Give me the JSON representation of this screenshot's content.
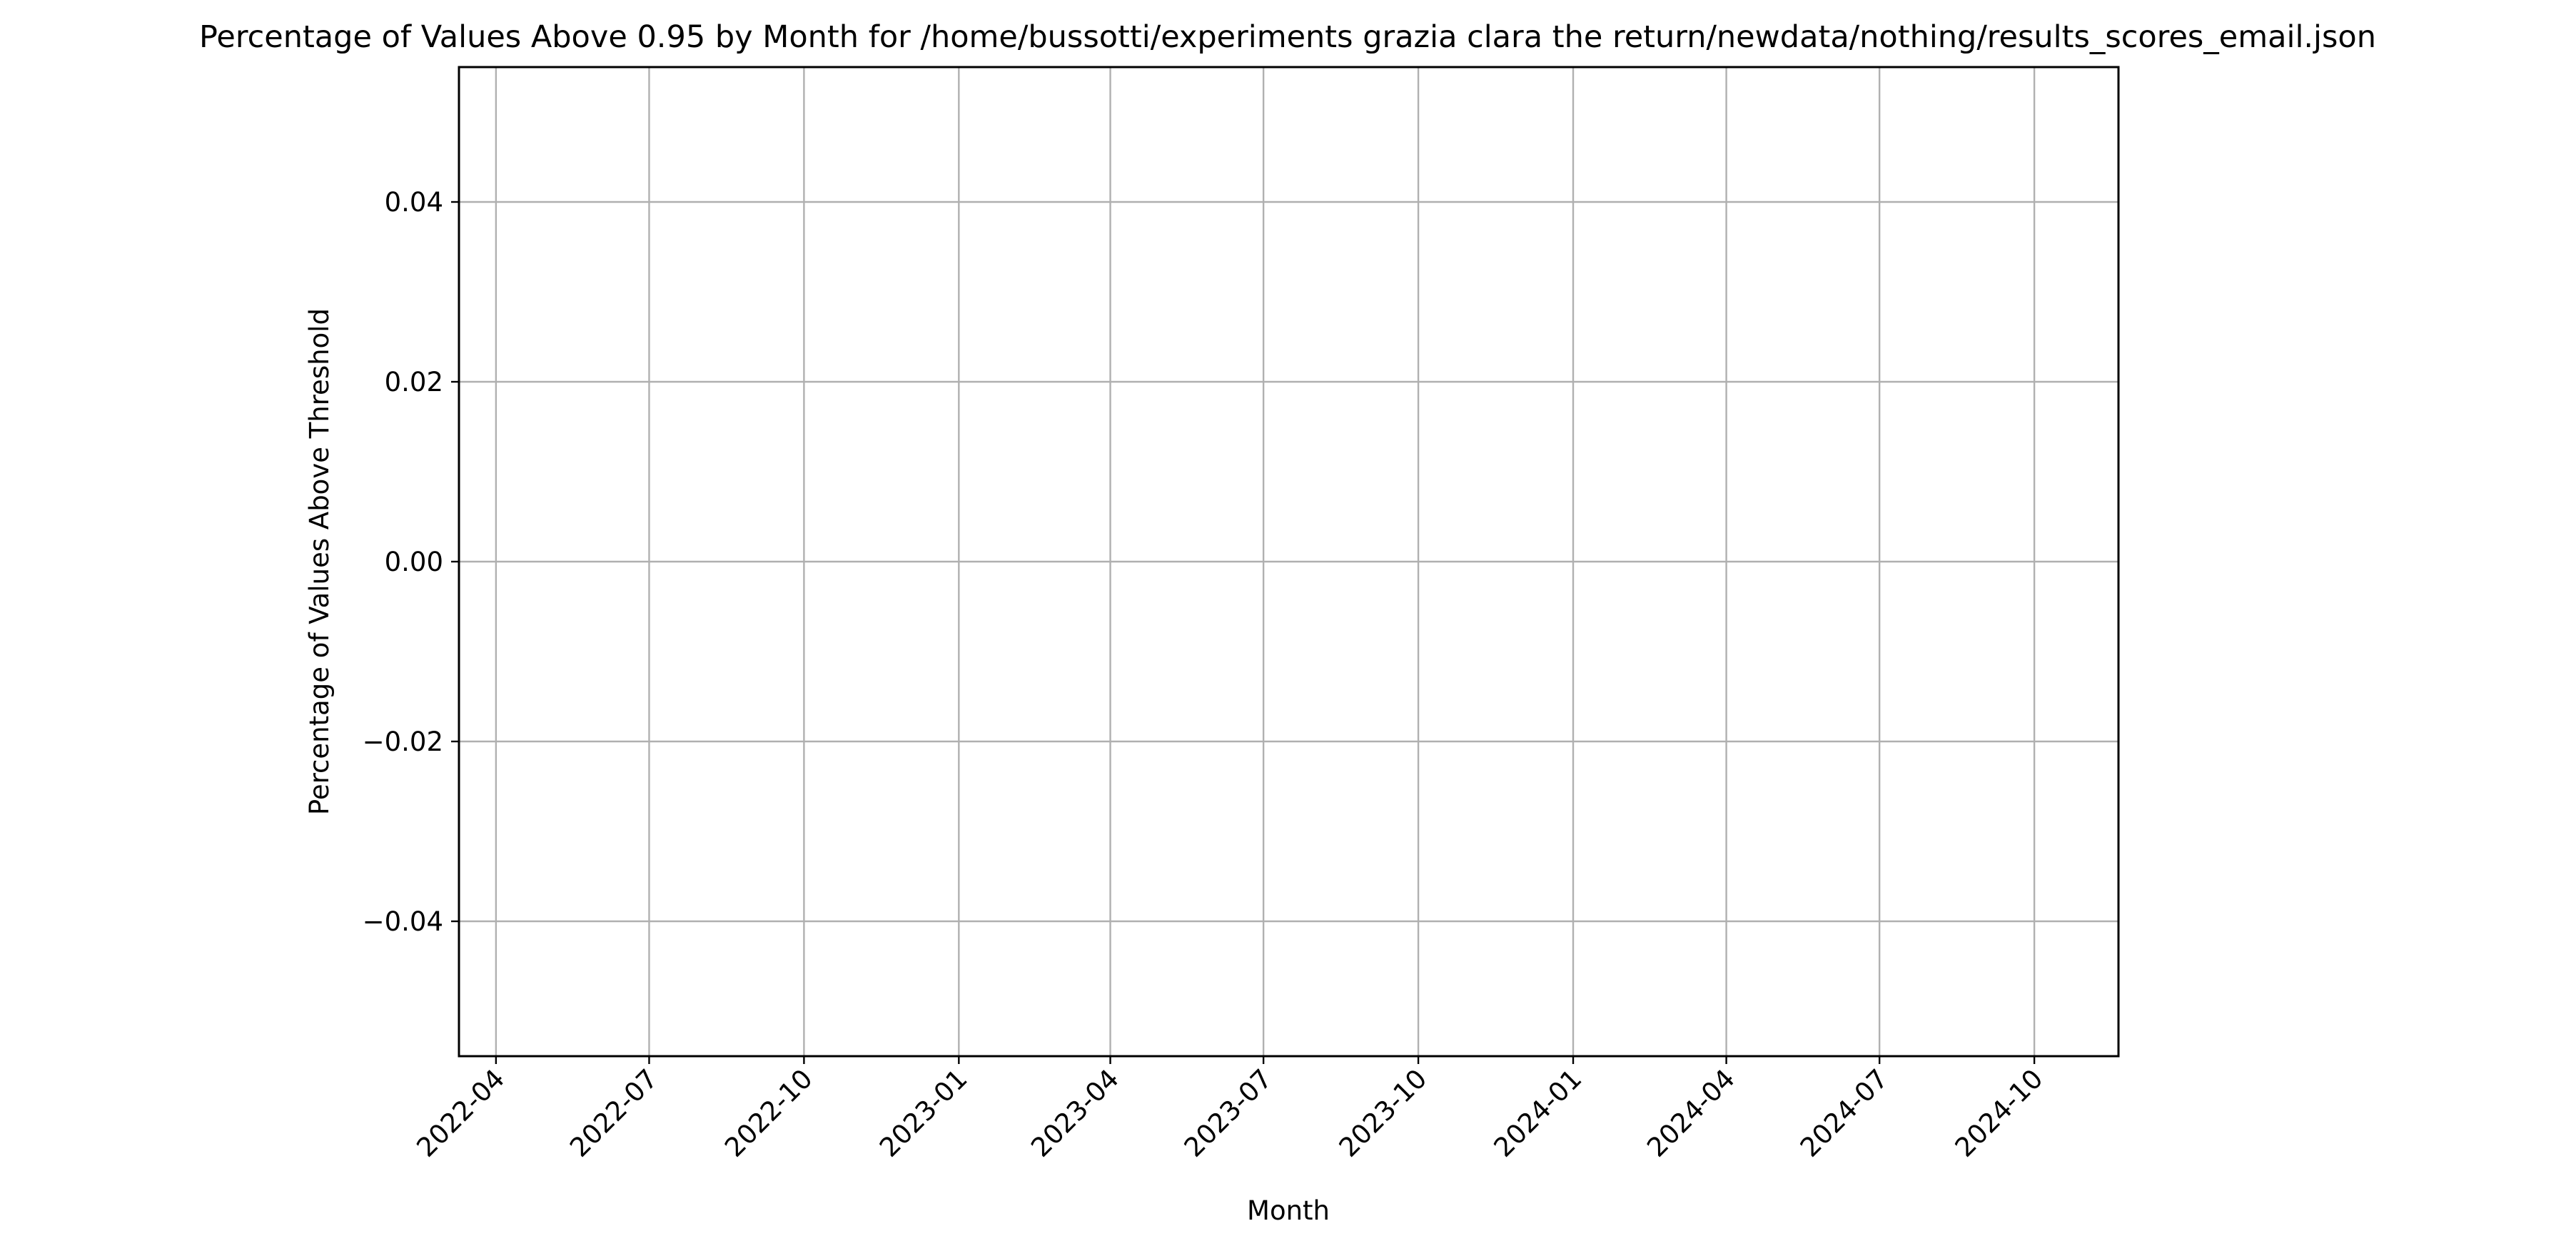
{
  "chart_data": {
    "type": "line",
    "title": "Percentage of Values Above 0.95 by Month for /home/bussotti/experiments grazia clara the return/newdata/nothing/results_scores_email.json",
    "xlabel": "Month",
    "ylabel": "Percentage of Values Above Threshold",
    "x_ticks": [
      "2022-04",
      "2022-07",
      "2022-10",
      "2023-01",
      "2023-04",
      "2023-07",
      "2023-10",
      "2024-01",
      "2024-04",
      "2024-07",
      "2024-10"
    ],
    "y_ticks": [
      "0.04",
      "0.02",
      "0.00",
      "−0.02",
      "−0.04"
    ],
    "y_tick_values": [
      0.04,
      0.02,
      0.0,
      -0.02,
      -0.04
    ],
    "ylim": [
      -0.055,
      0.055
    ],
    "xlim": [
      "2022-03-10",
      "2024-11-20"
    ],
    "series": [],
    "grid": true,
    "x_tick_rotation_deg": 45
  }
}
